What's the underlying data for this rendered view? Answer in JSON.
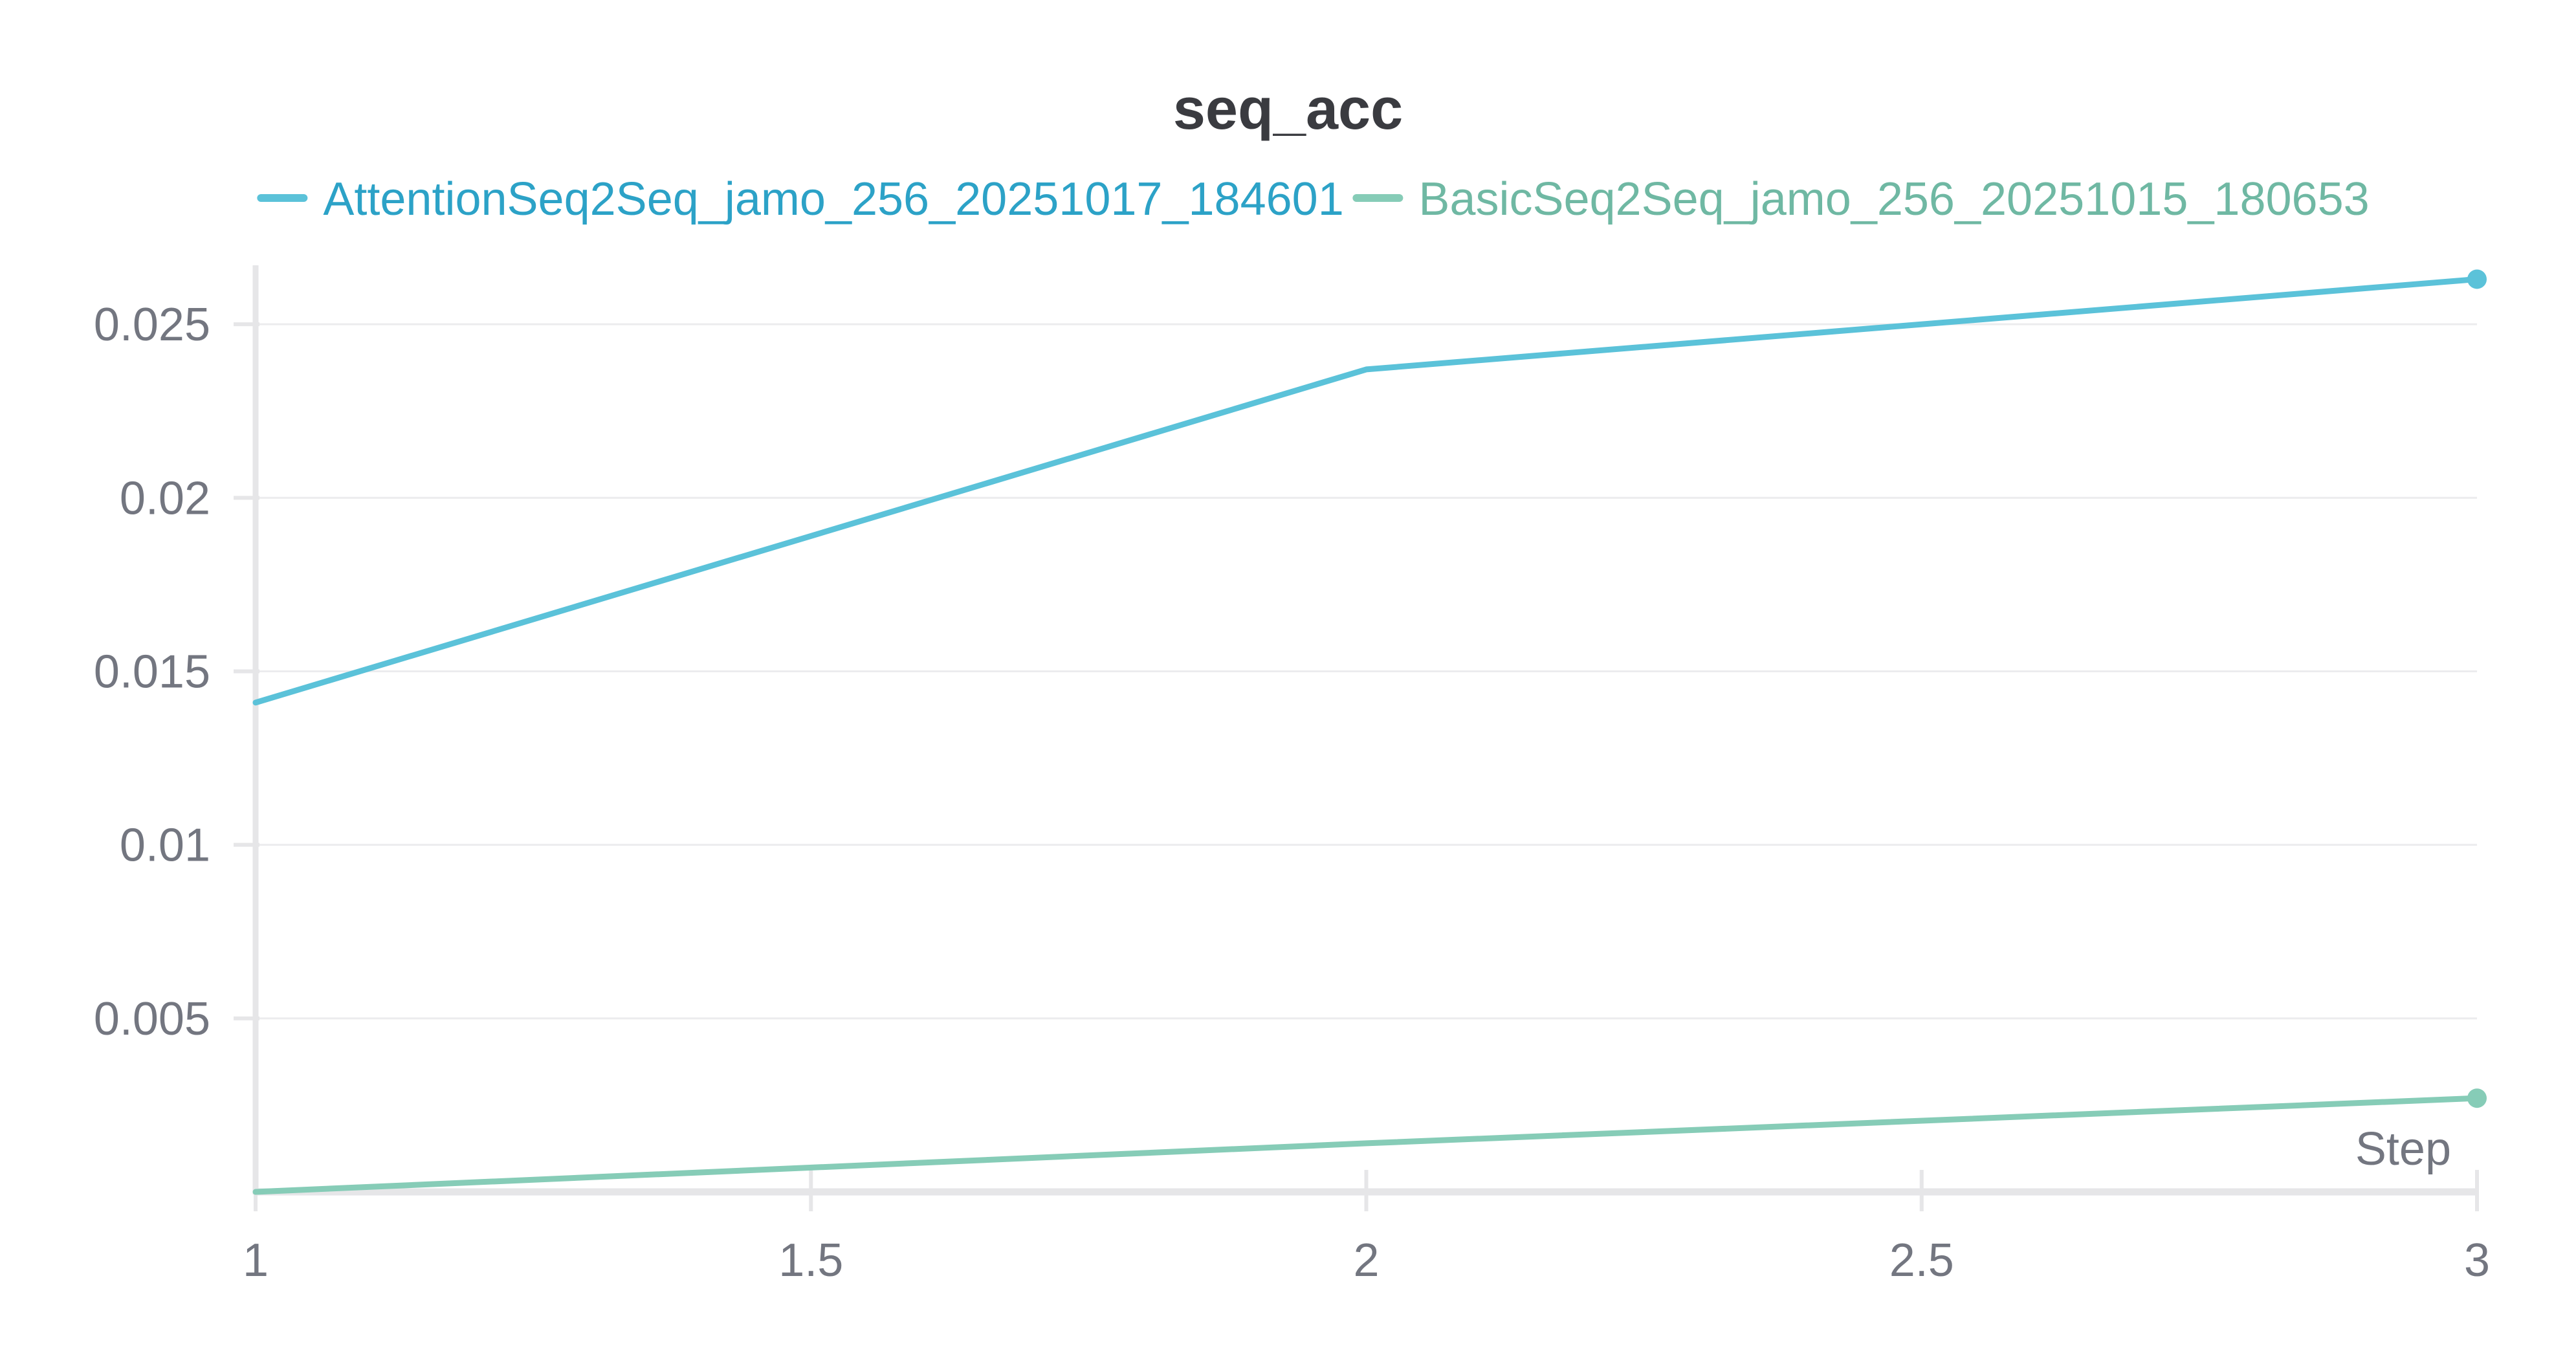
{
  "chart_data": {
    "type": "line",
    "title": "seq_acc",
    "xlabel": "Step",
    "ylabel": "",
    "x_ticks": [
      "1",
      "1.5",
      "2",
      "2.5",
      "3"
    ],
    "y_ticks": [
      "0.005",
      "0.01",
      "0.015",
      "0.02",
      "0.025"
    ],
    "xlim": [
      1,
      3
    ],
    "ylim": [
      0.0,
      0.0267
    ],
    "grid": true,
    "legend_position": "top",
    "series": [
      {
        "name": "AttentionSeq2Seq_jamo_256_20251017_184601",
        "color": "#5bc2d9",
        "legend_text_color": "#2ca2c7",
        "x": [
          1,
          2,
          3
        ],
        "y": [
          0.0141,
          0.0237,
          0.0263
        ]
      },
      {
        "name": "BasicSeq2Seq_jamo_256_20251015_180653",
        "color": "#86ccb7",
        "legend_text_color": "#6fb8a3",
        "x": [
          1,
          2,
          3
        ],
        "y": [
          0.0,
          0.0014,
          0.0027
        ]
      }
    ]
  }
}
